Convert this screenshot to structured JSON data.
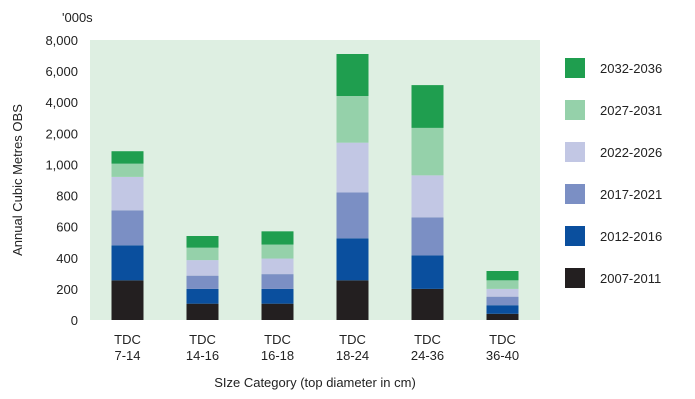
{
  "chart_data": {
    "type": "bar",
    "stacked": true,
    "title": "",
    "unit_note": "'000s",
    "xlabel": "SIze Category (top diameter in cm)",
    "ylabel": "Annual Cubic Metres OBS",
    "yticks": [
      "0",
      "200",
      "400",
      "600",
      "800",
      "1,000",
      "2,000",
      "4,000",
      "6,000",
      "8,000"
    ],
    "categories": [
      [
        "TDC",
        "7-14"
      ],
      [
        "TDC",
        "14-16"
      ],
      [
        "TDC",
        "16-18"
      ],
      [
        "TDC",
        "18-24"
      ],
      [
        "TDC",
        "24-36"
      ],
      [
        "TDC",
        "36-40"
      ]
    ],
    "grid": false,
    "legend_position": "right",
    "background_color": "#deefe2",
    "series": [
      {
        "name": "2007-2011",
        "color": "#231f20",
        "values": [
          255,
          105,
          105,
          255,
          200,
          40
        ]
      },
      {
        "name": "2012-2016",
        "color": "#0a4f9e",
        "values": [
          225,
          95,
          95,
          270,
          215,
          55
        ]
      },
      {
        "name": "2017-2021",
        "color": "#7b8fc4",
        "values": [
          225,
          85,
          95,
          295,
          245,
          55
        ]
      },
      {
        "name": "2022-2026",
        "color": "#c2c7e4",
        "values": [
          215,
          100,
          100,
          320,
          270,
          50
        ]
      },
      {
        "name": "2027-2031",
        "color": "#95d1aa",
        "values": [
          85,
          80,
          90,
          300,
          305,
          55
        ]
      },
      {
        "name": "2032-2036",
        "color": "#1f9e4f",
        "values": [
          80,
          75,
          85,
          270,
          275,
          60
        ]
      }
    ]
  }
}
